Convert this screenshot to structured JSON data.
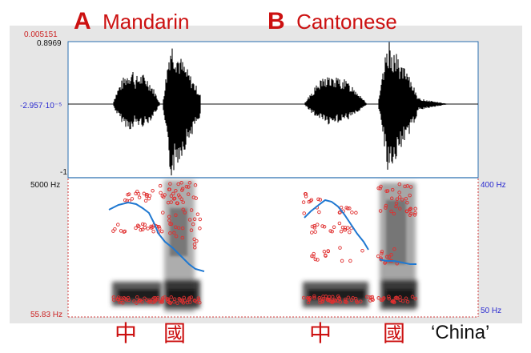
{
  "header": {
    "left_letter": "A",
    "left_language": "Mandarin",
    "right_letter": "B",
    "right_language": "Cantonese"
  },
  "waveform_axis": {
    "top_red": "0.005151",
    "max": "0.8969",
    "mid": "-2.957·10⁻⁵",
    "min": "-1"
  },
  "spectrogram_axis": {
    "freq_max": "5000 Hz",
    "freq_min": "55.83 Hz",
    "pitch_max": "400 Hz",
    "pitch_min": "50 Hz"
  },
  "characters": [
    "中",
    "國",
    "中",
    "國"
  ],
  "gloss": "‘China’",
  "colors": {
    "accent_red": "#cc1111",
    "axis_blue": "#2a2ad0",
    "pitch_line": "#1f78d1",
    "formant_dots": "#e03030"
  }
}
